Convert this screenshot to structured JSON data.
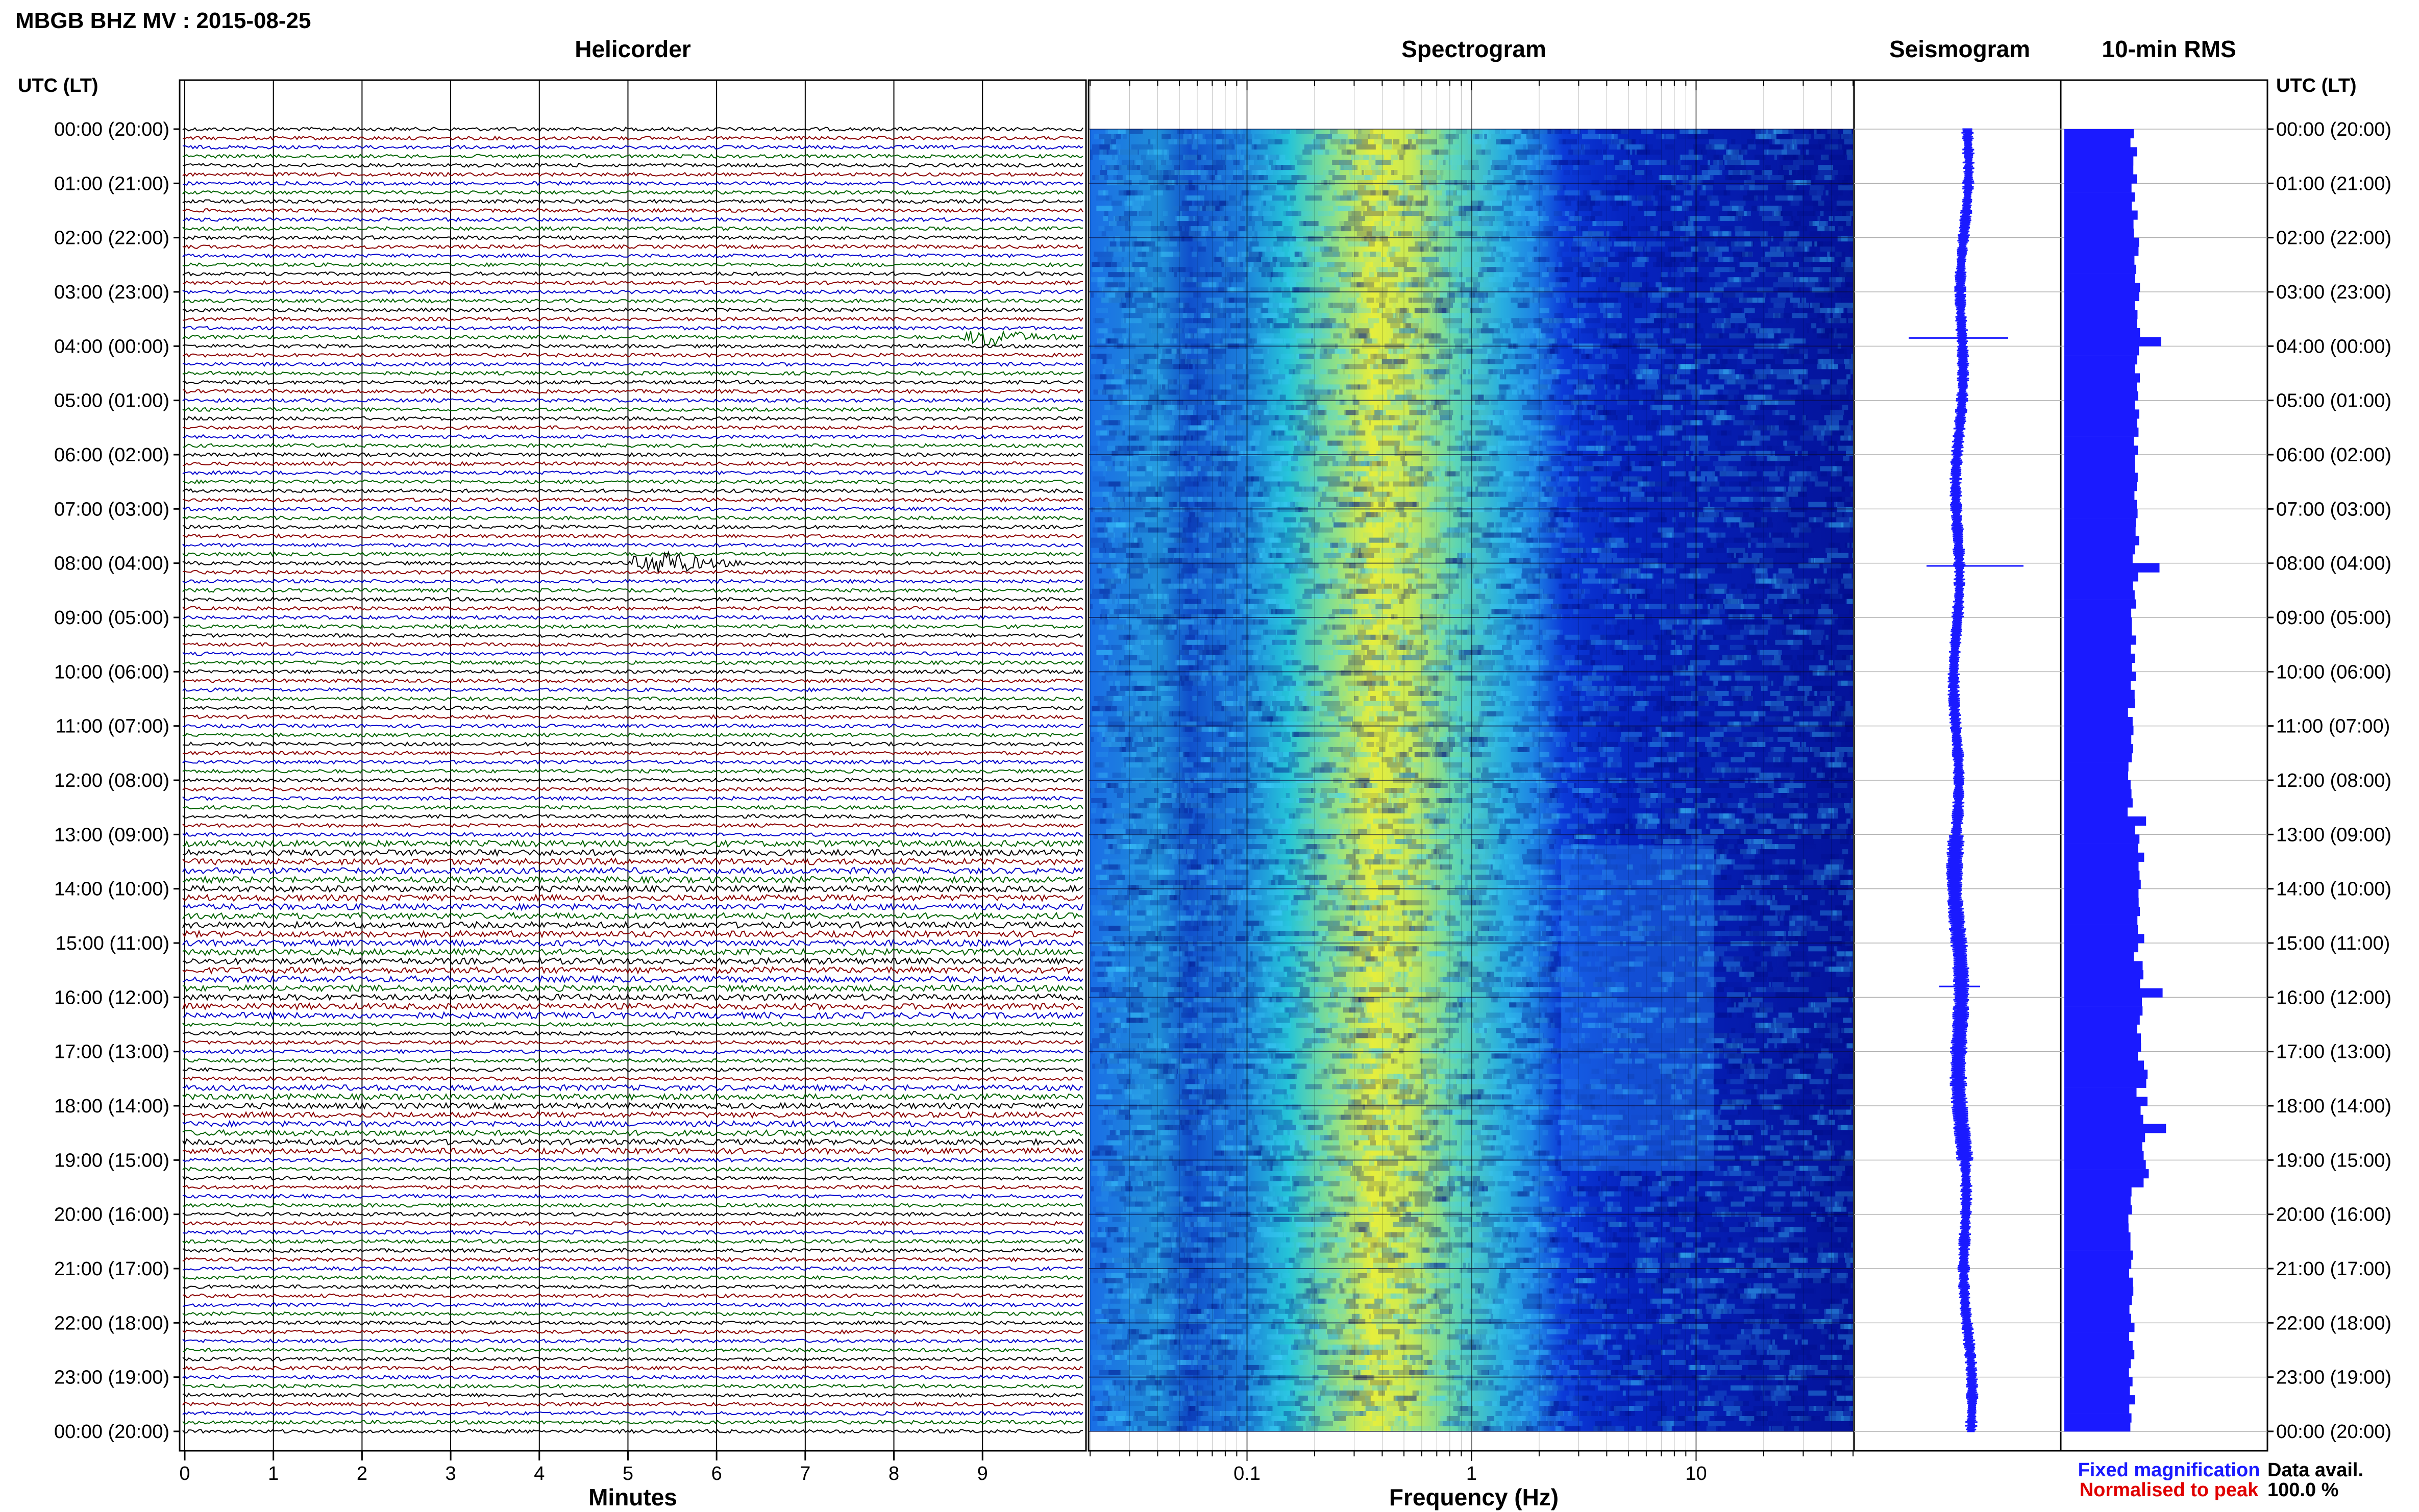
{
  "header": {
    "title": "MBGB BHZ MV : 2015-08-25"
  },
  "panels": {
    "helicorder": "Helicorder",
    "spectrogram": "Spectrogram",
    "seismogram": "Seismogram",
    "rms": "10-min RMS"
  },
  "axes": {
    "left_header": "UTC (LT)",
    "right_header": "UTC (LT)",
    "helicorder_xlabel": "Minutes",
    "spectrogram_xlabel": "Frequency (Hz)"
  },
  "legend": {
    "fixed": "Fixed magnification",
    "normalised": "Normalised to peak",
    "fixed_color": "#1a1aff",
    "normalised_color": "#e00000"
  },
  "data_avail": {
    "label": "Data avail.",
    "value": "100.0 %"
  },
  "colors": {
    "trace_cycle": [
      "#000000",
      "#8b0000",
      "#0000cc",
      "#006400"
    ],
    "seismogram": "#1a1aff",
    "rms": "#1a1aff",
    "spectrogram_low": "#00007a",
    "spectrogram_high": "#f0f028"
  },
  "chart_data": [
    {
      "type": "line",
      "name": "Helicorder",
      "x_ticks": [
        "0",
        "1",
        "2",
        "3",
        "4",
        "5",
        "6",
        "7",
        "8",
        "9"
      ],
      "xlim": [
        0,
        10
      ],
      "trace_count": 144,
      "events": [
        {
          "hour": 3.83,
          "minute": 9.1,
          "amplitude": "moderate"
        },
        {
          "hour": 8.0,
          "minute": 5.4,
          "amplitude": "large"
        }
      ]
    },
    {
      "type": "heatmap",
      "name": "Spectrogram",
      "x_scale": "log",
      "xlim": [
        0.02,
        50
      ],
      "x_ticks": [
        "0.1",
        "1",
        "10"
      ],
      "peak_frequency_hz": 0.5
    },
    {
      "type": "line",
      "name": "Seismogram",
      "xlim": [
        0,
        24
      ]
    },
    {
      "type": "bar",
      "name": "10-min RMS",
      "orientation": "horizontal",
      "peaks_hour": [
        3.9,
        8.0,
        15.8,
        18.3
      ]
    }
  ],
  "time_labels": [
    "00:00 (20:00)",
    "01:00 (21:00)",
    "02:00 (22:00)",
    "03:00 (23:00)",
    "04:00 (00:00)",
    "05:00 (01:00)",
    "06:00 (02:00)",
    "07:00 (03:00)",
    "08:00 (04:00)",
    "09:00 (05:00)",
    "10:00 (06:00)",
    "11:00 (07:00)",
    "12:00 (08:00)",
    "13:00 (09:00)",
    "14:00 (10:00)",
    "15:00 (11:00)",
    "16:00 (12:00)",
    "17:00 (13:00)",
    "18:00 (14:00)",
    "19:00 (15:00)",
    "20:00 (16:00)",
    "21:00 (17:00)",
    "22:00 (18:00)",
    "23:00 (19:00)",
    "00:00 (20:00)"
  ]
}
